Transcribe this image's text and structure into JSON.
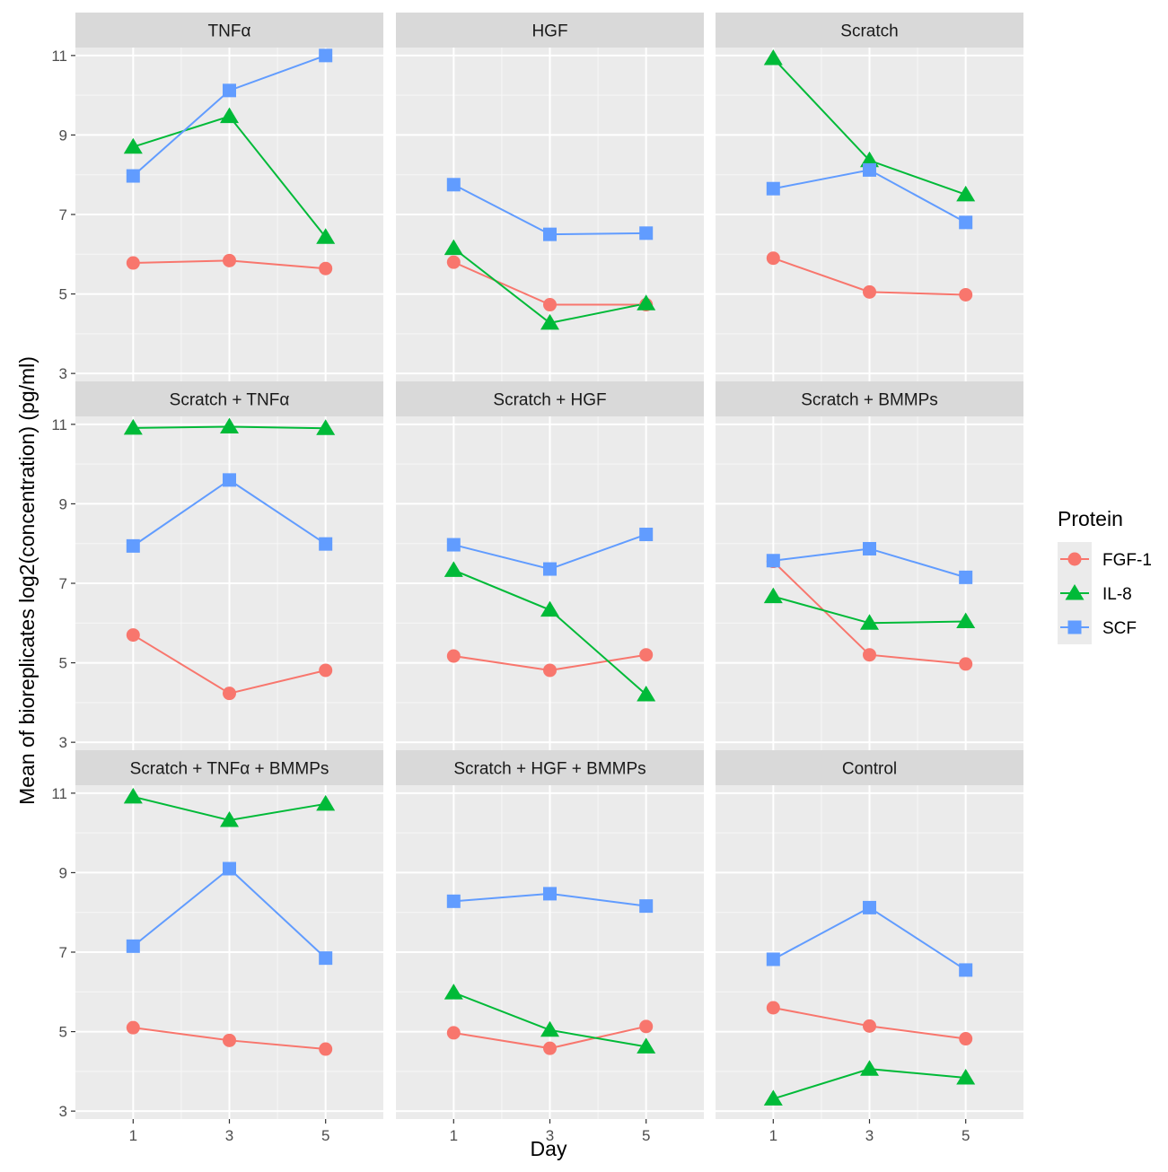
{
  "chart_data": {
    "type": "line",
    "xlabel": "Day",
    "ylabel": "Mean of bioreplicates log2(concentration) (pg/ml)",
    "x": [
      1,
      3,
      5
    ],
    "xlim": [
      -0.2,
      6.2
    ],
    "ylim": [
      2.8,
      11.2
    ],
    "yticks": [
      3,
      5,
      7,
      9,
      11
    ],
    "grid": true,
    "legend": {
      "title": "Protein",
      "position": "right",
      "entries": [
        {
          "name": "FGF-1",
          "color": "#F8766D",
          "shape": "circle"
        },
        {
          "name": "IL-8",
          "color": "#00BA38",
          "shape": "triangle"
        },
        {
          "name": "SCF",
          "color": "#619CFF",
          "shape": "square"
        }
      ]
    },
    "panels": [
      {
        "title": "TNFα",
        "series": [
          {
            "name": "FGF-1",
            "values": [
              5.78,
              5.84,
              5.64
            ]
          },
          {
            "name": "IL-8",
            "values": [
              8.7,
              9.47,
              6.43
            ]
          },
          {
            "name": "SCF",
            "values": [
              7.97,
              10.12,
              11.0
            ]
          }
        ]
      },
      {
        "title": "HGF",
        "series": [
          {
            "name": "FGF-1",
            "values": [
              5.8,
              4.73,
              4.73
            ]
          },
          {
            "name": "IL-8",
            "values": [
              6.15,
              4.27,
              4.76
            ]
          },
          {
            "name": "SCF",
            "values": [
              7.75,
              6.5,
              6.53
            ]
          }
        ]
      },
      {
        "title": "Scratch",
        "series": [
          {
            "name": "FGF-1",
            "values": [
              5.9,
              5.05,
              4.98
            ]
          },
          {
            "name": "IL-8",
            "values": [
              10.93,
              8.36,
              7.5
            ]
          },
          {
            "name": "SCF",
            "values": [
              7.65,
              8.12,
              6.8
            ]
          }
        ]
      },
      {
        "title": "Scratch + TNFα",
        "series": [
          {
            "name": "FGF-1",
            "values": [
              5.7,
              4.23,
              4.81
            ]
          },
          {
            "name": "IL-8",
            "values": [
              10.91,
              10.94,
              10.9
            ]
          },
          {
            "name": "SCF",
            "values": [
              7.94,
              9.6,
              7.99
            ]
          }
        ]
      },
      {
        "title": "Scratch + HGF",
        "series": [
          {
            "name": "FGF-1",
            "values": [
              5.17,
              4.81,
              5.2
            ]
          },
          {
            "name": "IL-8",
            "values": [
              7.33,
              6.33,
              4.2
            ]
          },
          {
            "name": "SCF",
            "values": [
              7.97,
              7.36,
              8.23
            ]
          }
        ]
      },
      {
        "title": "Scratch + BMMPs",
        "series": [
          {
            "name": "FGF-1",
            "values": [
              7.55,
              5.2,
              4.97
            ]
          },
          {
            "name": "IL-8",
            "values": [
              6.67,
              6.0,
              6.04
            ]
          },
          {
            "name": "SCF",
            "values": [
              7.57,
              7.87,
              7.15
            ]
          }
        ]
      },
      {
        "title": "Scratch + TNFα + BMMPs",
        "series": [
          {
            "name": "FGF-1",
            "values": [
              5.1,
              4.78,
              4.56
            ]
          },
          {
            "name": "IL-8",
            "values": [
              10.91,
              10.32,
              10.73
            ]
          },
          {
            "name": "SCF",
            "values": [
              7.15,
              9.1,
              6.85
            ]
          }
        ]
      },
      {
        "title": "Scratch + HGF + BMMPs",
        "series": [
          {
            "name": "FGF-1",
            "values": [
              4.97,
              4.58,
              5.13
            ]
          },
          {
            "name": "IL-8",
            "values": [
              5.98,
              5.04,
              4.62
            ]
          },
          {
            "name": "SCF",
            "values": [
              8.28,
              8.47,
              8.16
            ]
          }
        ]
      },
      {
        "title": "Control",
        "series": [
          {
            "name": "FGF-1",
            "values": [
              5.6,
              5.14,
              4.82
            ]
          },
          {
            "name": "IL-8",
            "values": [
              3.31,
              4.06,
              3.84
            ]
          },
          {
            "name": "SCF",
            "values": [
              6.82,
              8.12,
              6.55
            ]
          }
        ]
      }
    ]
  }
}
